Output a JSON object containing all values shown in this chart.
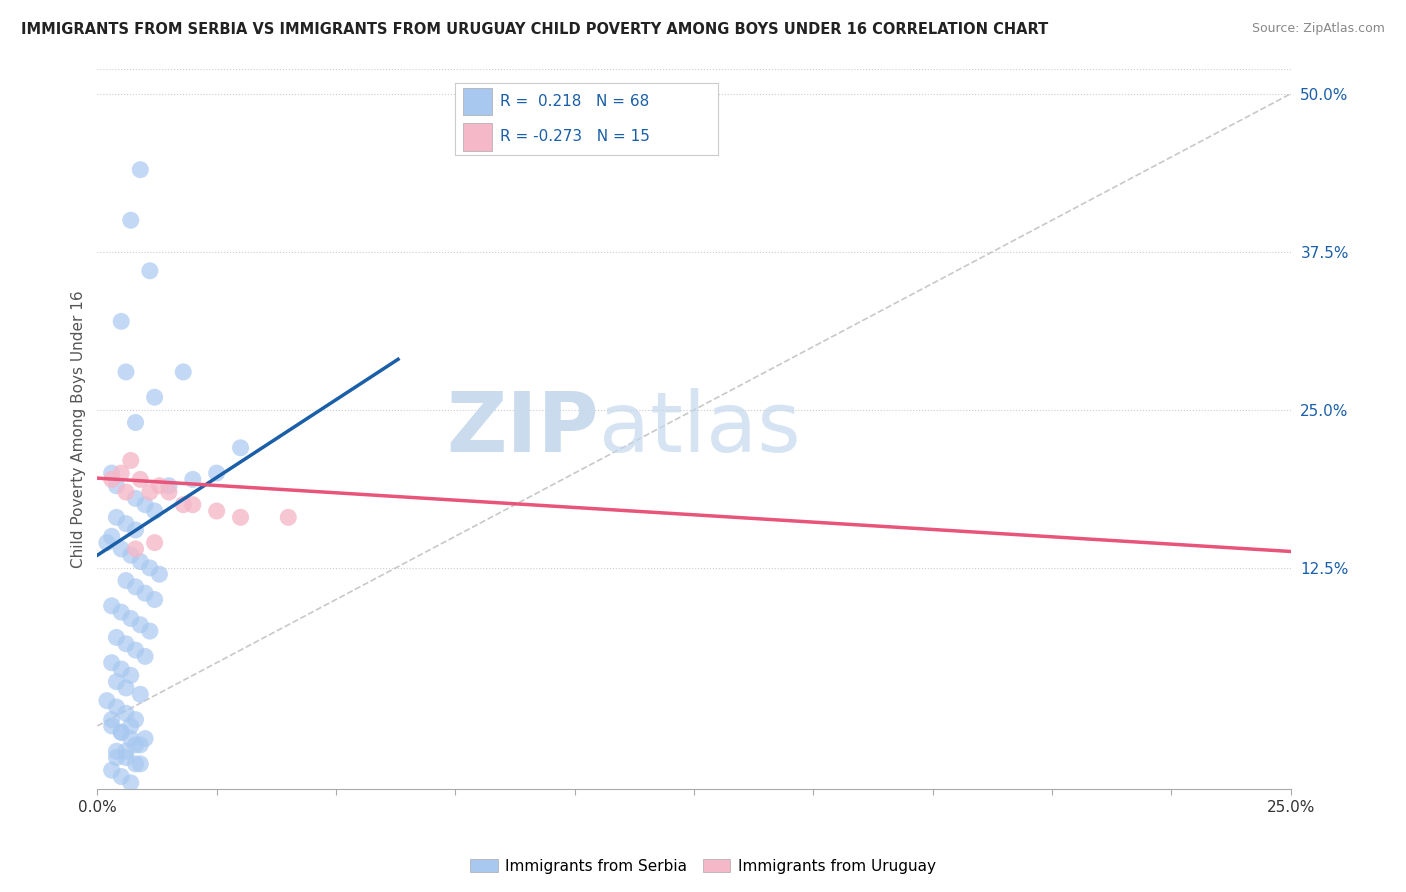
{
  "title": "IMMIGRANTS FROM SERBIA VS IMMIGRANTS FROM URUGUAY CHILD POVERTY AMONG BOYS UNDER 16 CORRELATION CHART",
  "source": "Source: ZipAtlas.com",
  "ylabel": "Child Poverty Among Boys Under 16",
  "xlim": [
    0.0,
    0.25
  ],
  "ylim": [
    -0.05,
    0.52
  ],
  "ytick_vals": [
    0.125,
    0.25,
    0.375,
    0.5
  ],
  "ytick_labels": [
    "12.5%",
    "25.0%",
    "37.5%",
    "50.0%"
  ],
  "serbia_R": 0.218,
  "serbia_N": 68,
  "uruguay_R": -0.273,
  "uruguay_N": 15,
  "serbia_color": "#a8c8f0",
  "uruguay_color": "#f5b8c8",
  "serbia_line_color": "#1a5fa8",
  "uruguay_line_color": "#e8547a",
  "diagonal_color": "#bbbbbb",
  "watermark_zip": "ZIP",
  "watermark_atlas": "atlas",
  "serbia_scatter_x": [
    0.009,
    0.007,
    0.011,
    0.005,
    0.006,
    0.003,
    0.004,
    0.008,
    0.01,
    0.012,
    0.004,
    0.006,
    0.008,
    0.003,
    0.002,
    0.005,
    0.007,
    0.009,
    0.011,
    0.013,
    0.006,
    0.008,
    0.01,
    0.012,
    0.003,
    0.005,
    0.007,
    0.009,
    0.011,
    0.004,
    0.006,
    0.008,
    0.01,
    0.003,
    0.005,
    0.007,
    0.004,
    0.006,
    0.009,
    0.002,
    0.004,
    0.006,
    0.008,
    0.003,
    0.005,
    0.007,
    0.009,
    0.004,
    0.006,
    0.008,
    0.003,
    0.005,
    0.007,
    0.009,
    0.004,
    0.006,
    0.008,
    0.01,
    0.005,
    0.007,
    0.003,
    0.03,
    0.025,
    0.02,
    0.015,
    0.008,
    0.012,
    0.018
  ],
  "serbia_scatter_y": [
    0.44,
    0.4,
    0.36,
    0.32,
    0.28,
    0.2,
    0.19,
    0.18,
    0.175,
    0.17,
    0.165,
    0.16,
    0.155,
    0.15,
    0.145,
    0.14,
    0.135,
    0.13,
    0.125,
    0.12,
    0.115,
    0.11,
    0.105,
    0.1,
    0.095,
    0.09,
    0.085,
    0.08,
    0.075,
    0.07,
    0.065,
    0.06,
    0.055,
    0.05,
    0.045,
    0.04,
    0.035,
    0.03,
    0.025,
    0.02,
    0.015,
    0.01,
    0.005,
    0.0,
    -0.005,
    -0.01,
    -0.015,
    -0.02,
    -0.025,
    -0.03,
    -0.035,
    -0.04,
    -0.045,
    -0.03,
    -0.025,
    -0.02,
    -0.015,
    -0.01,
    -0.005,
    0.0,
    0.005,
    0.22,
    0.2,
    0.195,
    0.19,
    0.24,
    0.26,
    0.28
  ],
  "uruguay_scatter_x": [
    0.003,
    0.005,
    0.007,
    0.009,
    0.011,
    0.013,
    0.015,
    0.018,
    0.02,
    0.025,
    0.03,
    0.04,
    0.008,
    0.012,
    0.006
  ],
  "uruguay_scatter_y": [
    0.195,
    0.2,
    0.21,
    0.195,
    0.185,
    0.19,
    0.185,
    0.175,
    0.175,
    0.17,
    0.165,
    0.165,
    0.14,
    0.145,
    0.185
  ],
  "serbia_trendline_x": [
    0.0,
    0.063
  ],
  "serbia_trendline_y": [
    0.135,
    0.29
  ],
  "uruguay_trendline_x": [
    0.0,
    0.25
  ],
  "uruguay_trendline_y": [
    0.196,
    0.138
  ]
}
